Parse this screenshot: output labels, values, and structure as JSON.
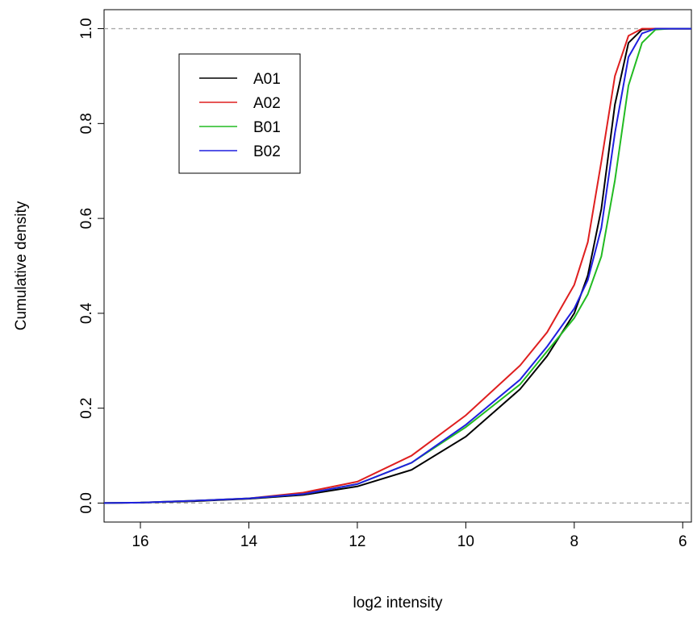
{
  "chart_data": {
    "type": "line",
    "xlabel": "log2 intensity",
    "ylabel": "Cumulative density",
    "x": [
      16.67,
      16,
      15,
      14,
      13,
      12,
      11,
      10,
      9,
      8.5,
      8,
      7.75,
      7.5,
      7.25,
      7,
      6.75,
      6.5,
      6.25,
      5.84
    ],
    "series": [
      {
        "name": "A01",
        "color": "#000000",
        "values": [
          0,
          0.001,
          0.004,
          0.009,
          0.017,
          0.035,
          0.07,
          0.14,
          0.24,
          0.31,
          0.4,
          0.48,
          0.62,
          0.84,
          0.97,
          0.998,
          1,
          1,
          1
        ]
      },
      {
        "name": "A02",
        "color": "#df1f1f",
        "values": [
          0,
          0.001,
          0.005,
          0.01,
          0.022,
          0.045,
          0.1,
          0.185,
          0.29,
          0.36,
          0.46,
          0.55,
          0.72,
          0.9,
          0.985,
          1,
          1,
          1,
          1
        ]
      },
      {
        "name": "B01",
        "color": "#22bb22",
        "values": [
          0,
          0.001,
          0.005,
          0.01,
          0.019,
          0.04,
          0.085,
          0.16,
          0.25,
          0.32,
          0.39,
          0.44,
          0.52,
          0.68,
          0.88,
          0.97,
          0.998,
          1,
          1
        ]
      },
      {
        "name": "B02",
        "color": "#1f1fdf",
        "values": [
          0,
          0.001,
          0.005,
          0.01,
          0.019,
          0.04,
          0.085,
          0.165,
          0.26,
          0.33,
          0.41,
          0.47,
          0.58,
          0.78,
          0.94,
          0.99,
          1,
          1,
          1
        ]
      }
    ],
    "xlim": [
      16.67,
      5.84
    ],
    "xticks": [
      16,
      14,
      12,
      10,
      8,
      6
    ],
    "ylim": [
      -0.04,
      1.04
    ],
    "yticks": [
      {
        "value": 0,
        "label": "0.0"
      },
      0.2,
      0.4,
      0.6,
      0.8,
      {
        "value": 1,
        "label": "1.0"
      }
    ],
    "hlines": [
      0,
      1
    ],
    "hline_color": "#aaaaaa",
    "legend": "top-left",
    "grid": false
  }
}
